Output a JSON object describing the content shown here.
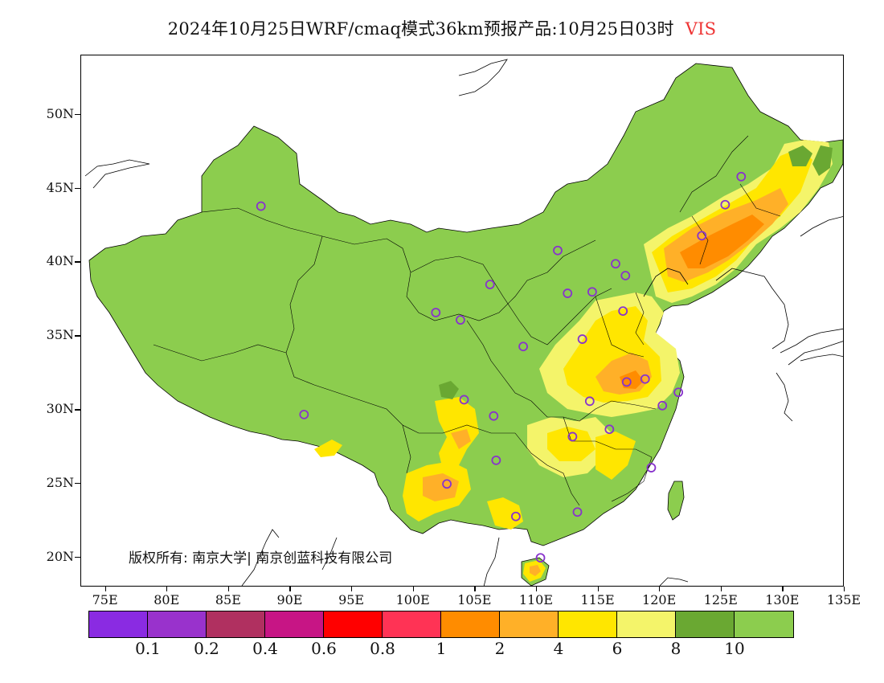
{
  "title": {
    "main": "2024年10月25日WRF/cmaq模式36km预报产品:10月25日03时",
    "variable": "VIS",
    "variable_color": "#ee3333"
  },
  "map": {
    "projection": "lat-lon",
    "lon_range": [
      73,
      135
    ],
    "lat_range": [
      18,
      54
    ],
    "lat_ticks": [
      "50N",
      "45N",
      "40N",
      "35N",
      "30N",
      "25N",
      "20N"
    ],
    "lon_ticks": [
      "75E",
      "80E",
      "85E",
      "90E",
      "95E",
      "100E",
      "105E",
      "110E",
      "115E",
      "120E",
      "125E",
      "130E",
      "135E"
    ],
    "land_fill": "#8ccd4e",
    "station_marker_color": "#8833cc",
    "stations": [
      {
        "lon": 87.6,
        "lat": 43.8
      },
      {
        "lon": 91.1,
        "lat": 29.7
      },
      {
        "lon": 101.8,
        "lat": 36.6
      },
      {
        "lon": 103.8,
        "lat": 36.1
      },
      {
        "lon": 106.2,
        "lat": 38.5
      },
      {
        "lon": 111.7,
        "lat": 40.8
      },
      {
        "lon": 112.5,
        "lat": 37.9
      },
      {
        "lon": 114.5,
        "lat": 38.0
      },
      {
        "lon": 116.4,
        "lat": 39.9
      },
      {
        "lon": 117.2,
        "lat": 39.1
      },
      {
        "lon": 117.0,
        "lat": 36.7
      },
      {
        "lon": 113.7,
        "lat": 34.8
      },
      {
        "lon": 108.9,
        "lat": 34.3
      },
      {
        "lon": 117.3,
        "lat": 31.9
      },
      {
        "lon": 118.8,
        "lat": 32.1
      },
      {
        "lon": 121.5,
        "lat": 31.2
      },
      {
        "lon": 120.2,
        "lat": 30.3
      },
      {
        "lon": 114.3,
        "lat": 30.6
      },
      {
        "lon": 112.9,
        "lat": 28.2
      },
      {
        "lon": 115.9,
        "lat": 28.7
      },
      {
        "lon": 119.3,
        "lat": 26.1
      },
      {
        "lon": 113.3,
        "lat": 23.1
      },
      {
        "lon": 108.3,
        "lat": 22.8
      },
      {
        "lon": 110.3,
        "lat": 20.0
      },
      {
        "lon": 102.7,
        "lat": 25.0
      },
      {
        "lon": 106.7,
        "lat": 26.6
      },
      {
        "lon": 104.1,
        "lat": 30.7
      },
      {
        "lon": 106.5,
        "lat": 29.6
      },
      {
        "lon": 123.4,
        "lat": 41.8
      },
      {
        "lon": 125.3,
        "lat": 43.9
      },
      {
        "lon": 126.6,
        "lat": 45.8
      }
    ]
  },
  "copyright": "版权所有: 南京大学| 南京创蓝科技有限公司",
  "legend": {
    "colors": [
      "#8a2be2",
      "#9932cc",
      "#b03060",
      "#c71585",
      "#ff0000",
      "#ff3355",
      "#ff8c00",
      "#ffb028",
      "#ffe600",
      "#f4f46a",
      "#6aa832",
      "#8ccd4e"
    ],
    "labels": [
      "0.1",
      "0.2",
      "0.4",
      "0.6",
      "0.8",
      "1",
      "2",
      "4",
      "6",
      "8",
      "10"
    ]
  }
}
